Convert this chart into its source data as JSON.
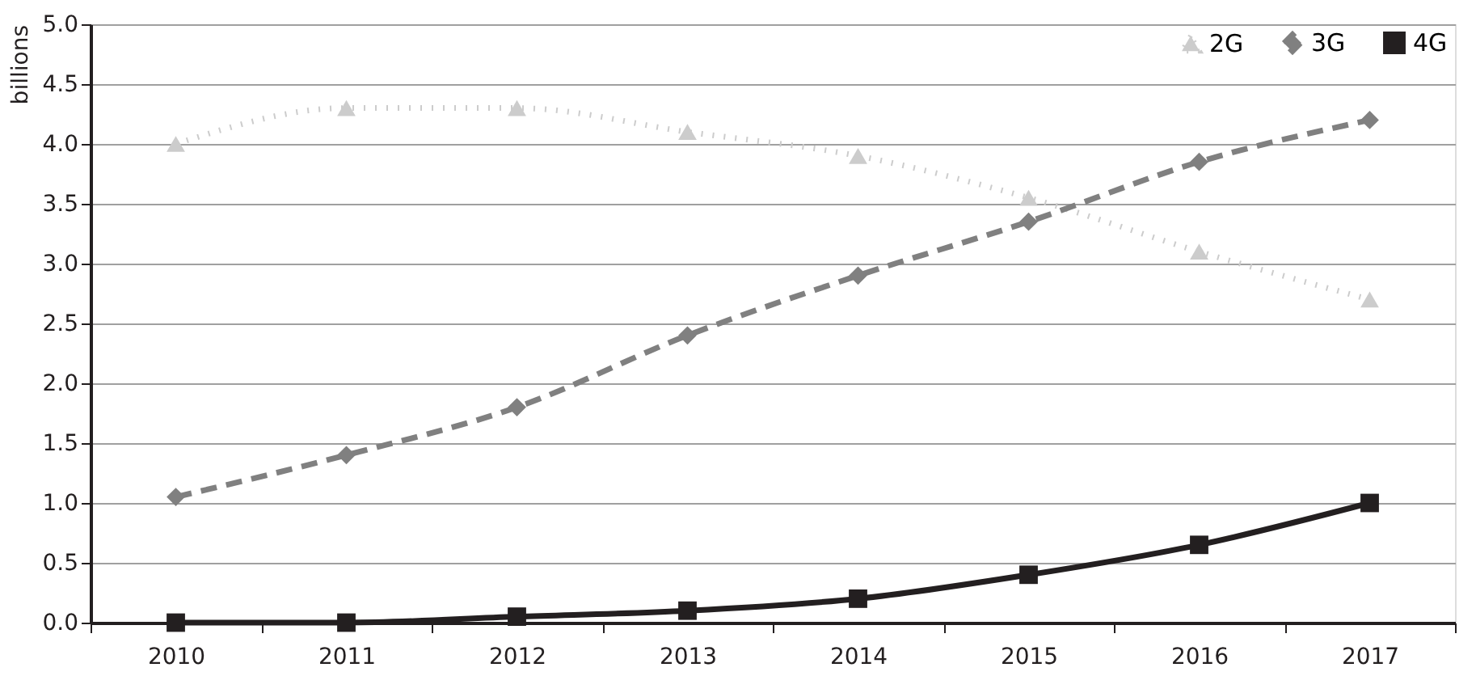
{
  "chart_data": {
    "type": "line",
    "ylabel": "billions",
    "categories": [
      "2010",
      "2011",
      "2012",
      "2013",
      "2014",
      "2015",
      "2016",
      "2017"
    ],
    "series": [
      {
        "name": "2G",
        "color": "#cccccc",
        "marker": "triangle",
        "line_style": "dotted",
        "values": [
          4.0,
          4.3,
          4.3,
          4.1,
          3.9,
          3.55,
          3.1,
          2.7
        ]
      },
      {
        "name": "3G",
        "color": "#808080",
        "marker": "diamond",
        "line_style": "dashed",
        "values": [
          1.05,
          1.4,
          1.8,
          2.4,
          2.9,
          3.35,
          3.85,
          4.2
        ]
      },
      {
        "name": "4G",
        "color": "#231f20",
        "marker": "square",
        "line_style": "solid",
        "values": [
          0,
          0,
          0.05,
          0.1,
          0.2,
          0.4,
          0.65,
          1.0
        ]
      }
    ],
    "ylim": [
      0,
      5
    ],
    "yticks": [
      {
        "value": 0,
        "label": "0.0"
      },
      0.5,
      {
        "value": 1,
        "label": "1.0"
      },
      1.5,
      {
        "value": 2,
        "label": "2.0"
      },
      2.5,
      {
        "value": 3,
        "label": "3.0"
      },
      3.5,
      {
        "value": 4,
        "label": "4.0"
      },
      4.5,
      {
        "value": 5,
        "label": "5.0"
      }
    ],
    "grid": "y",
    "legend": "top right"
  }
}
